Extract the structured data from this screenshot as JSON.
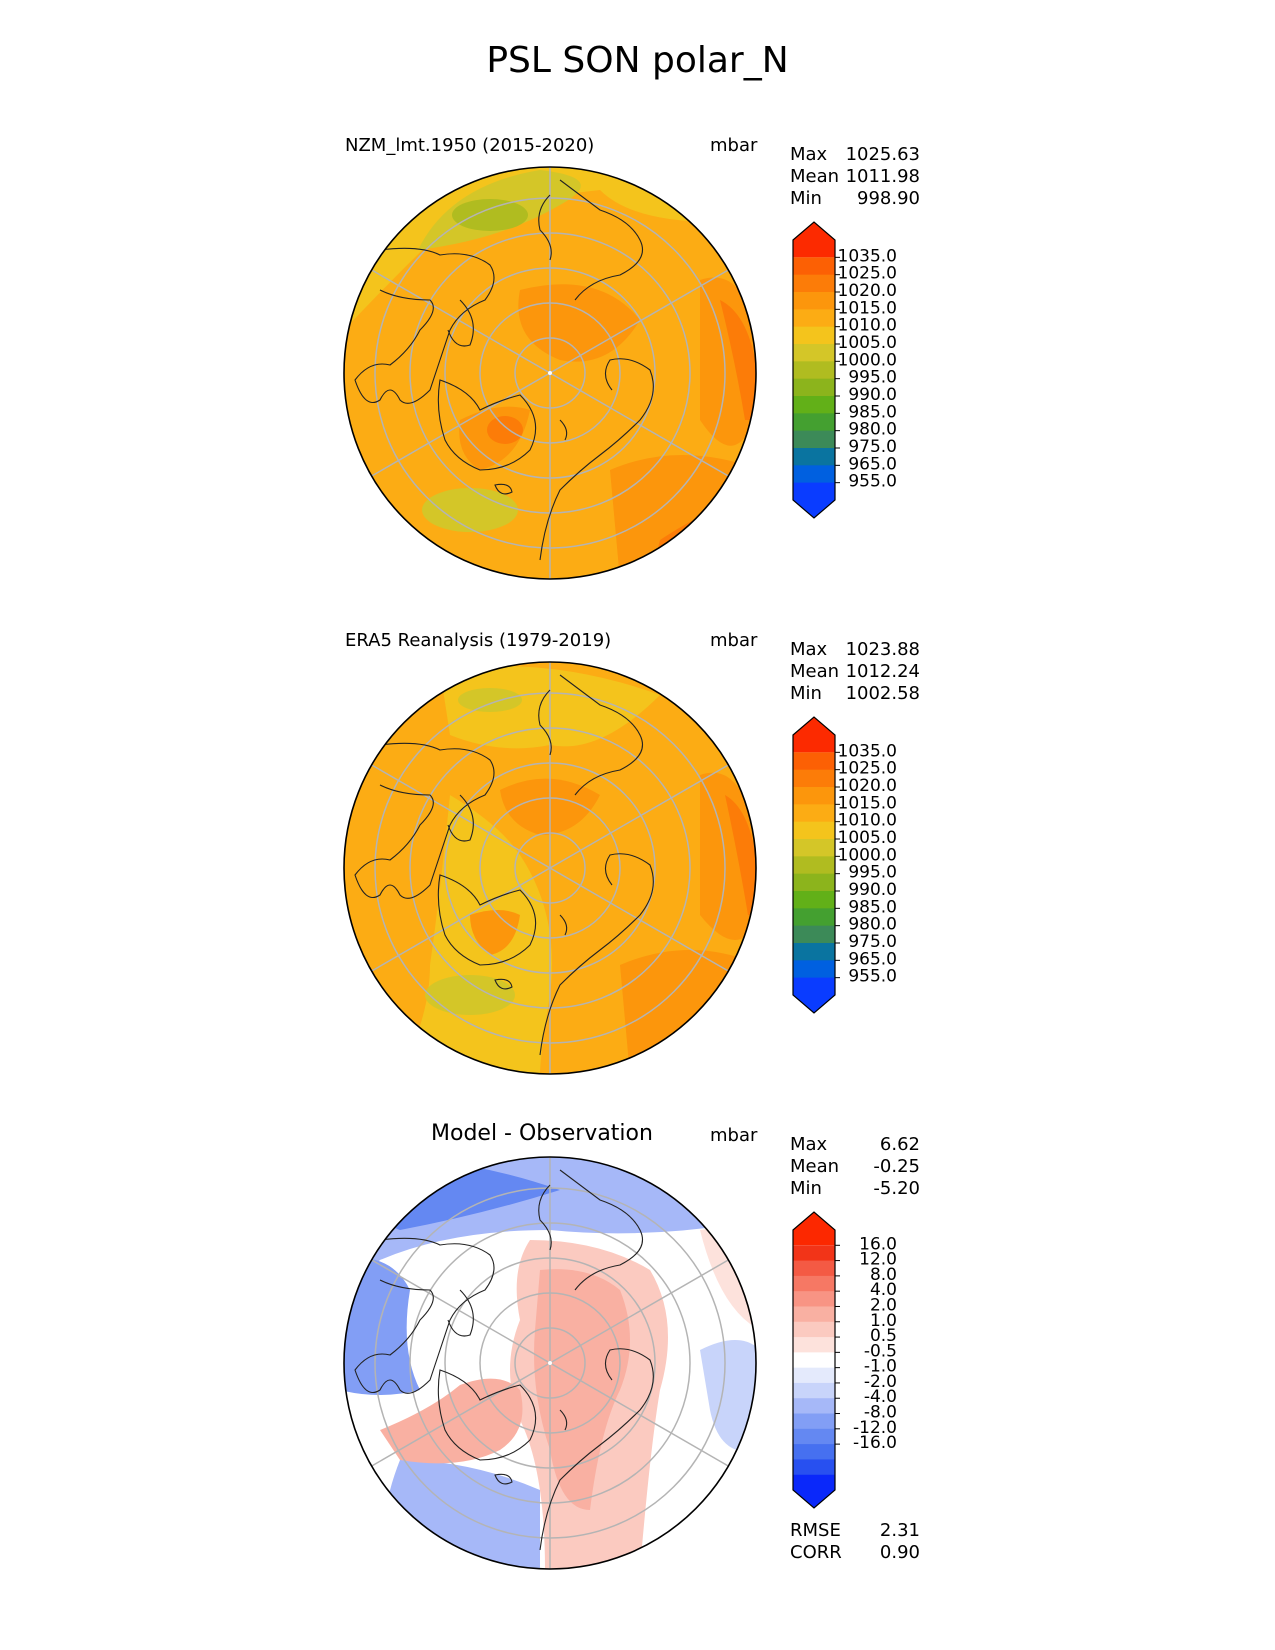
{
  "title": "PSL SON polar_N",
  "colors": {
    "abs_levels": [
      "#0a3cff",
      "#0060e0",
      "#0a74a0",
      "#3c8a58",
      "#44a030",
      "#62b018",
      "#8cb41c",
      "#b0bc20",
      "#d4c628",
      "#f4c41c",
      "#fcac14",
      "#fc960c",
      "#fc7c08",
      "#fc6004",
      "#fc2a00"
    ],
    "diff_levels": [
      "#0a28fa",
      "#2850f0",
      "#4670f0",
      "#6488f2",
      "#829ef5",
      "#a6b8f8",
      "#c8d4fa",
      "#e4eafc",
      "#ffffff",
      "#fde2dc",
      "#fbcac0",
      "#f9b0a2",
      "#f89484",
      "#f67864",
      "#f45a44",
      "#f23418",
      "#fc2800"
    ],
    "grid": "#b4b4b4",
    "coast": "#222222"
  },
  "panels": [
    {
      "title": "NZM_lmt.1950 (2015-2020)",
      "units": "mbar",
      "stats": [
        {
          "label": "Max",
          "value": "1025.63"
        },
        {
          "label": "Mean",
          "value": "1011.98"
        },
        {
          "label": "Min",
          "value": "998.90"
        }
      ],
      "colorbar": {
        "ticks": [
          "1035.0",
          "1025.0",
          "1020.0",
          "1015.0",
          "1010.0",
          "1005.0",
          "1000.0",
          "995.0",
          "990.0",
          "985.0",
          "980.0",
          "975.0",
          "965.0",
          "955.0"
        ]
      }
    },
    {
      "title": "ERA5 Reanalysis (1979-2019)",
      "units": "mbar",
      "stats": [
        {
          "label": "Max",
          "value": "1023.88"
        },
        {
          "label": "Mean",
          "value": "1012.24"
        },
        {
          "label": "Min",
          "value": "1002.58"
        }
      ],
      "colorbar": {
        "ticks": [
          "1035.0",
          "1025.0",
          "1020.0",
          "1015.0",
          "1010.0",
          "1005.0",
          "1000.0",
          "995.0",
          "990.0",
          "985.0",
          "980.0",
          "975.0",
          "965.0",
          "955.0"
        ]
      }
    },
    {
      "title": "Model - Observation",
      "units": "mbar",
      "stats": [
        {
          "label": "Max",
          "value": "6.62"
        },
        {
          "label": "Mean",
          "value": "-0.25"
        },
        {
          "label": "Min",
          "value": "-5.20"
        }
      ],
      "colorbar": {
        "ticks": [
          "16.0",
          "12.0",
          "8.0",
          "4.0",
          "2.0",
          "1.0",
          "0.5",
          "-0.5",
          "-1.0",
          "-2.0",
          "-4.0",
          "-8.0",
          "-12.0",
          "-16.0"
        ]
      },
      "footer": [
        {
          "label": "RMSE",
          "value": "2.31"
        },
        {
          "label": "CORR",
          "value": "0.90"
        }
      ]
    }
  ],
  "chart_data": [
    {
      "type": "heatmap",
      "title": "NZM_lmt.1950 (2015-2020)",
      "projection": "north polar stereographic",
      "variable": "PSL",
      "units": "mbar",
      "max": 1025.63,
      "mean": 1011.98,
      "min": 998.9,
      "levels": [
        955,
        965,
        975,
        980,
        985,
        990,
        995,
        1000,
        1005,
        1010,
        1015,
        1020,
        1025,
        1035
      ]
    },
    {
      "type": "heatmap",
      "title": "ERA5 Reanalysis (1979-2019)",
      "projection": "north polar stereographic",
      "variable": "PSL",
      "units": "mbar",
      "max": 1023.88,
      "mean": 1012.24,
      "min": 1002.58,
      "levels": [
        955,
        965,
        975,
        980,
        985,
        990,
        995,
        1000,
        1005,
        1010,
        1015,
        1020,
        1025,
        1035
      ]
    },
    {
      "type": "heatmap",
      "title": "Model - Observation",
      "projection": "north polar stereographic",
      "variable": "PSL difference",
      "units": "mbar",
      "max": 6.62,
      "mean": -0.25,
      "min": -5.2,
      "rmse": 2.31,
      "corr": 0.9,
      "levels": [
        -16,
        -12,
        -8,
        -4,
        -2,
        -1,
        -0.5,
        0.5,
        1,
        2,
        4,
        8,
        12,
        16
      ]
    }
  ]
}
